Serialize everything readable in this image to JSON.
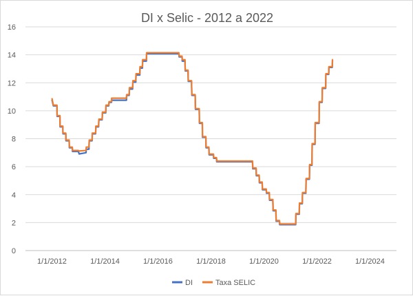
{
  "chart_data": {
    "type": "line",
    "title": "DI x Selic - 2012 a 2022",
    "xlabel": "",
    "ylabel": "",
    "x_ticks": [
      "1/1/2012",
      "1/1/2014",
      "1/1/2016",
      "1/1/2018",
      "1/1/2020",
      "1/1/2022",
      "1/1/2024"
    ],
    "y_ticks": [
      0,
      2,
      4,
      6,
      8,
      10,
      12,
      14,
      16
    ],
    "ylim": [
      0,
      16
    ],
    "xlim": [
      "2011-01-01",
      "2025-01-01"
    ],
    "grid": "horizontal",
    "legend_position": "bottom",
    "colors": {
      "di": "#4472c4",
      "selic": "#ed7d31",
      "grid": "#d9d9d9",
      "text": "#595959"
    },
    "series": [
      {
        "name": "DI",
        "color": "#4472c4",
        "points": [
          [
            "2012-01-01",
            10.84
          ],
          [
            "2012-01-20",
            10.4
          ],
          [
            "2012-03-10",
            10.4
          ],
          [
            "2012-03-12",
            9.65
          ],
          [
            "2012-04-20",
            9.65
          ],
          [
            "2012-04-22",
            8.9
          ],
          [
            "2012-05-30",
            8.9
          ],
          [
            "2012-06-01",
            8.4
          ],
          [
            "2012-07-10",
            8.4
          ],
          [
            "2012-07-12",
            7.9
          ],
          [
            "2012-08-25",
            7.9
          ],
          [
            "2012-08-28",
            7.4
          ],
          [
            "2012-10-08",
            7.4
          ],
          [
            "2012-10-10",
            7.14
          ],
          [
            "2012-12-30",
            7.14
          ],
          [
            "2013-01-10",
            6.96
          ],
          [
            "2013-04-15",
            7.05
          ],
          [
            "2013-04-18",
            7.3
          ],
          [
            "2013-05-25",
            7.3
          ],
          [
            "2013-05-29",
            7.9
          ],
          [
            "2013-07-08",
            7.9
          ],
          [
            "2013-07-10",
            8.4
          ],
          [
            "2013-08-25",
            8.4
          ],
          [
            "2013-08-28",
            8.9
          ],
          [
            "2013-10-05",
            8.9
          ],
          [
            "2013-10-09",
            9.4
          ],
          [
            "2013-11-23",
            9.4
          ],
          [
            "2013-11-27",
            9.9
          ],
          [
            "2014-01-12",
            9.9
          ],
          [
            "2014-01-15",
            10.4
          ],
          [
            "2014-02-22",
            10.4
          ],
          [
            "2014-02-26",
            10.65
          ],
          [
            "2014-04-01",
            10.65
          ],
          [
            "2014-04-03",
            10.8
          ],
          [
            "2014-10-24",
            10.8
          ],
          [
            "2014-10-27",
            11.15
          ],
          [
            "2014-12-01",
            11.15
          ],
          [
            "2014-12-04",
            11.6
          ],
          [
            "2015-01-17",
            11.6
          ],
          [
            "2015-01-21",
            12.1
          ],
          [
            "2015-03-02",
            12.1
          ],
          [
            "2015-03-05",
            12.6
          ],
          [
            "2015-04-26",
            12.6
          ],
          [
            "2015-04-29",
            13.1
          ],
          [
            "2015-06-01",
            13.1
          ],
          [
            "2015-06-04",
            13.6
          ],
          [
            "2015-07-26",
            13.6
          ],
          [
            "2015-07-29",
            14.13
          ],
          [
            "2016-10-16",
            14.13
          ],
          [
            "2016-10-19",
            13.9
          ],
          [
            "2016-11-28",
            13.9
          ],
          [
            "2016-12-01",
            13.6
          ],
          [
            "2017-01-08",
            13.6
          ],
          [
            "2017-01-11",
            12.9
          ],
          [
            "2017-02-19",
            12.9
          ],
          [
            "2017-02-22",
            12.15
          ],
          [
            "2017-04-08",
            12.15
          ],
          [
            "2017-04-12",
            11.15
          ],
          [
            "2017-05-28",
            11.15
          ],
          [
            "2017-06-01",
            10.15
          ],
          [
            "2017-07-23",
            10.15
          ],
          [
            "2017-07-26",
            9.15
          ],
          [
            "2017-09-04",
            9.15
          ],
          [
            "2017-09-06",
            8.15
          ],
          [
            "2017-10-22",
            8.15
          ],
          [
            "2017-10-25",
            7.4
          ],
          [
            "2017-12-03",
            7.4
          ],
          [
            "2017-12-06",
            6.9
          ],
          [
            "2018-02-04",
            6.9
          ],
          [
            "2018-02-07",
            6.65
          ],
          [
            "2018-03-18",
            6.65
          ],
          [
            "2018-03-21",
            6.4
          ],
          [
            "2019-07-28",
            6.4
          ],
          [
            "2019-07-31",
            5.9
          ],
          [
            "2019-09-15",
            5.9
          ],
          [
            "2019-09-18",
            5.4
          ],
          [
            "2019-10-27",
            5.4
          ],
          [
            "2019-10-30",
            4.9
          ],
          [
            "2019-12-08",
            4.9
          ],
          [
            "2019-12-11",
            4.4
          ],
          [
            "2020-02-02",
            4.4
          ],
          [
            "2020-02-05",
            4.15
          ],
          [
            "2020-03-15",
            4.15
          ],
          [
            "2020-03-18",
            3.65
          ],
          [
            "2020-05-03",
            3.65
          ],
          [
            "2020-05-06",
            2.9
          ],
          [
            "2020-06-14",
            2.9
          ],
          [
            "2020-06-17",
            2.15
          ],
          [
            "2020-08-02",
            2.15
          ],
          [
            "2020-08-05",
            1.9
          ],
          [
            "2021-03-14",
            1.9
          ],
          [
            "2021-03-17",
            2.65
          ],
          [
            "2021-05-02",
            2.65
          ],
          [
            "2021-05-05",
            3.4
          ],
          [
            "2021-06-13",
            3.4
          ],
          [
            "2021-06-16",
            4.15
          ],
          [
            "2021-08-01",
            4.15
          ],
          [
            "2021-08-04",
            5.15
          ],
          [
            "2021-09-19",
            5.15
          ],
          [
            "2021-09-22",
            6.15
          ],
          [
            "2021-10-24",
            6.15
          ],
          [
            "2021-10-27",
            7.65
          ],
          [
            "2021-12-05",
            7.65
          ],
          [
            "2021-12-08",
            9.15
          ],
          [
            "2022-01-30",
            9.15
          ],
          [
            "2022-02-02",
            10.65
          ],
          [
            "2022-03-13",
            10.65
          ],
          [
            "2022-03-16",
            11.65
          ],
          [
            "2022-05-01",
            11.65
          ],
          [
            "2022-05-04",
            12.65
          ],
          [
            "2022-06-12",
            12.65
          ],
          [
            "2022-06-15",
            13.15
          ],
          [
            "2022-07-31",
            13.15
          ],
          [
            "2022-08-03",
            13.65
          ],
          [
            "2022-08-10",
            13.65
          ]
        ]
      },
      {
        "name": "Taxa SELIC",
        "color": "#ed7d31",
        "points": [
          [
            "2012-01-01",
            10.9
          ],
          [
            "2012-01-20",
            10.4
          ],
          [
            "2012-03-10",
            10.4
          ],
          [
            "2012-03-12",
            9.65
          ],
          [
            "2012-04-20",
            9.65
          ],
          [
            "2012-04-22",
            8.9
          ],
          [
            "2012-05-30",
            8.9
          ],
          [
            "2012-06-01",
            8.4
          ],
          [
            "2012-07-10",
            8.4
          ],
          [
            "2012-07-12",
            7.9
          ],
          [
            "2012-08-25",
            7.9
          ],
          [
            "2012-08-28",
            7.4
          ],
          [
            "2012-10-08",
            7.4
          ],
          [
            "2012-10-10",
            7.16
          ],
          [
            "2012-12-30",
            7.16
          ],
          [
            "2013-01-10",
            7.12
          ],
          [
            "2013-04-15",
            7.16
          ],
          [
            "2013-04-18",
            7.4
          ],
          [
            "2013-05-25",
            7.4
          ],
          [
            "2013-05-29",
            7.9
          ],
          [
            "2013-07-08",
            7.9
          ],
          [
            "2013-07-10",
            8.4
          ],
          [
            "2013-08-25",
            8.4
          ],
          [
            "2013-08-28",
            8.9
          ],
          [
            "2013-10-05",
            8.9
          ],
          [
            "2013-10-09",
            9.4
          ],
          [
            "2013-11-23",
            9.4
          ],
          [
            "2013-11-27",
            9.9
          ],
          [
            "2014-01-12",
            9.9
          ],
          [
            "2014-01-15",
            10.4
          ],
          [
            "2014-02-22",
            10.4
          ],
          [
            "2014-02-26",
            10.65
          ],
          [
            "2014-04-01",
            10.65
          ],
          [
            "2014-04-03",
            10.9
          ],
          [
            "2014-10-24",
            10.9
          ],
          [
            "2014-10-27",
            11.15
          ],
          [
            "2014-12-01",
            11.15
          ],
          [
            "2014-12-04",
            11.65
          ],
          [
            "2015-01-17",
            11.65
          ],
          [
            "2015-01-21",
            12.15
          ],
          [
            "2015-03-02",
            12.15
          ],
          [
            "2015-03-05",
            12.65
          ],
          [
            "2015-04-26",
            12.65
          ],
          [
            "2015-04-29",
            13.15
          ],
          [
            "2015-06-01",
            13.15
          ],
          [
            "2015-06-04",
            13.65
          ],
          [
            "2015-07-26",
            13.65
          ],
          [
            "2015-07-29",
            14.15
          ],
          [
            "2016-10-16",
            14.15
          ],
          [
            "2016-10-19",
            13.9
          ],
          [
            "2016-11-28",
            13.9
          ],
          [
            "2016-12-01",
            13.65
          ],
          [
            "2017-01-08",
            13.65
          ],
          [
            "2017-01-11",
            12.9
          ],
          [
            "2017-02-19",
            12.9
          ],
          [
            "2017-02-22",
            12.15
          ],
          [
            "2017-04-08",
            12.15
          ],
          [
            "2017-04-12",
            11.15
          ],
          [
            "2017-05-28",
            11.15
          ],
          [
            "2017-06-01",
            10.15
          ],
          [
            "2017-07-23",
            10.15
          ],
          [
            "2017-07-26",
            9.15
          ],
          [
            "2017-09-04",
            9.15
          ],
          [
            "2017-09-06",
            8.15
          ],
          [
            "2017-10-22",
            8.15
          ],
          [
            "2017-10-25",
            7.4
          ],
          [
            "2017-12-03",
            7.4
          ],
          [
            "2017-12-06",
            6.9
          ],
          [
            "2018-02-04",
            6.9
          ],
          [
            "2018-02-07",
            6.65
          ],
          [
            "2018-03-18",
            6.65
          ],
          [
            "2018-03-21",
            6.4
          ],
          [
            "2019-07-28",
            6.4
          ],
          [
            "2019-07-31",
            5.9
          ],
          [
            "2019-09-15",
            5.9
          ],
          [
            "2019-09-18",
            5.4
          ],
          [
            "2019-10-27",
            5.4
          ],
          [
            "2019-10-30",
            4.9
          ],
          [
            "2019-12-08",
            4.9
          ],
          [
            "2019-12-11",
            4.4
          ],
          [
            "2020-02-02",
            4.4
          ],
          [
            "2020-02-05",
            4.15
          ],
          [
            "2020-03-15",
            4.15
          ],
          [
            "2020-03-18",
            3.65
          ],
          [
            "2020-05-03",
            3.65
          ],
          [
            "2020-05-06",
            2.9
          ],
          [
            "2020-06-14",
            2.9
          ],
          [
            "2020-06-17",
            2.15
          ],
          [
            "2020-08-02",
            2.15
          ],
          [
            "2020-08-05",
            1.9
          ],
          [
            "2021-03-14",
            1.9
          ],
          [
            "2021-03-17",
            2.65
          ],
          [
            "2021-05-02",
            2.65
          ],
          [
            "2021-05-05",
            3.4
          ],
          [
            "2021-06-13",
            3.4
          ],
          [
            "2021-06-16",
            4.15
          ],
          [
            "2021-08-01",
            4.15
          ],
          [
            "2021-08-04",
            5.15
          ],
          [
            "2021-09-19",
            5.15
          ],
          [
            "2021-09-22",
            6.15
          ],
          [
            "2021-10-24",
            6.15
          ],
          [
            "2021-10-27",
            7.65
          ],
          [
            "2021-12-05",
            7.65
          ],
          [
            "2021-12-08",
            9.15
          ],
          [
            "2022-01-30",
            9.15
          ],
          [
            "2022-02-02",
            10.65
          ],
          [
            "2022-03-13",
            10.65
          ],
          [
            "2022-03-16",
            11.65
          ],
          [
            "2022-05-01",
            11.65
          ],
          [
            "2022-05-04",
            12.65
          ],
          [
            "2022-06-12",
            12.65
          ],
          [
            "2022-06-15",
            13.15
          ],
          [
            "2022-07-31",
            13.15
          ],
          [
            "2022-08-03",
            13.65
          ],
          [
            "2022-08-10",
            13.65
          ]
        ]
      }
    ]
  }
}
